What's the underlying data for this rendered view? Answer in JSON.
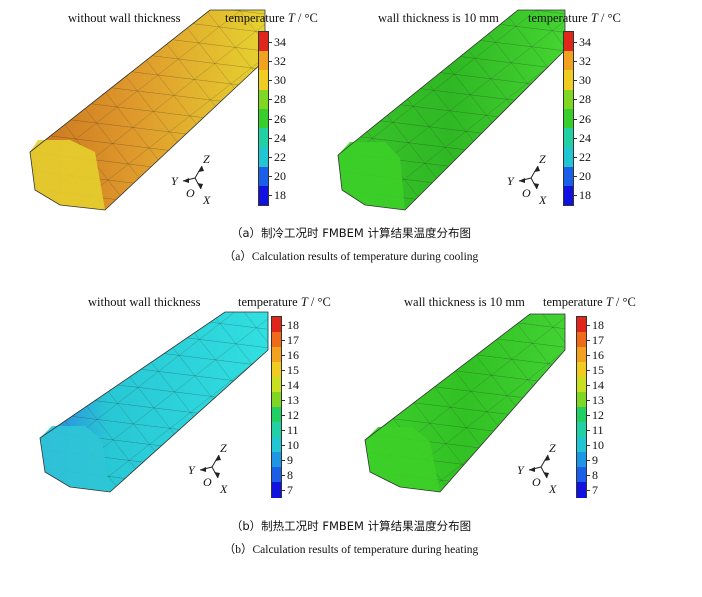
{
  "figure": {
    "panel_a": {
      "left_title": "without wall thickness",
      "right_title": "wall thickness is 10 mm",
      "colorbar_title": "temperature",
      "colorbar_symbol": "T",
      "colorbar_unit": "/ °C",
      "ticks": [
        "34",
        "32",
        "30",
        "28",
        "26",
        "24",
        "22",
        "20",
        "18"
      ],
      "caption_zh": "（a）制冷工况时 FMBEM 计算结果温度分布图",
      "caption_en": "（a）Calculation results of temperature during cooling"
    },
    "panel_b": {
      "left_title": "without wall thickness",
      "right_title": "wall thickness is 10 mm",
      "colorbar_title": "temperature",
      "colorbar_symbol": "T",
      "colorbar_unit": "/ °C",
      "ticks": [
        "18",
        "17",
        "16",
        "15",
        "14",
        "13",
        "12",
        "11",
        "10",
        "9",
        "8",
        "7"
      ],
      "caption_zh": "（b）制热工况时 FMBEM 计算结果温度分布图",
      "caption_en": "（b）Calculation results of temperature during heating"
    },
    "axes": {
      "y": "Y",
      "z": "Z",
      "o": "O",
      "x": "X"
    },
    "colors": {
      "cooling_no_wall": "#e2a82a",
      "cooling_wall": "#3ccf28",
      "heating_no_wall": "#2fc6d6",
      "heating_wall": "#3ccf28"
    }
  }
}
